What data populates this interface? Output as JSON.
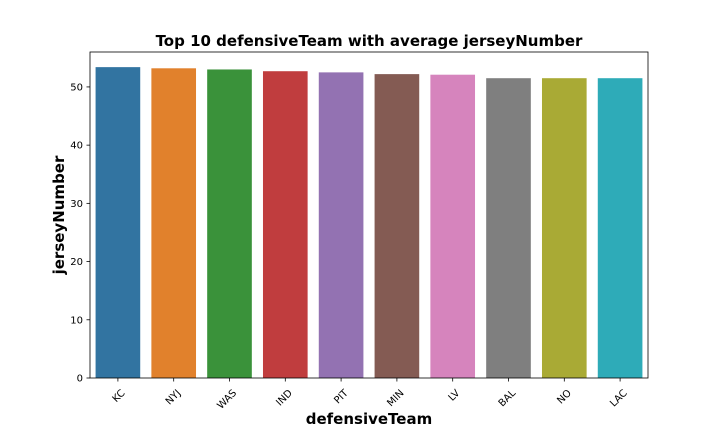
{
  "chart_data": {
    "type": "bar",
    "title": "Top 10 defensiveTeam with average jerseyNumber",
    "xlabel": "defensiveTeam",
    "ylabel": "jerseyNumber",
    "categories": [
      "KC",
      "NYJ",
      "WAS",
      "IND",
      "PIT",
      "MIN",
      "LV",
      "BAL",
      "NO",
      "LAC"
    ],
    "values": [
      53.4,
      53.2,
      53.0,
      52.7,
      52.5,
      52.2,
      52.1,
      51.5,
      51.5,
      51.5
    ],
    "colors": [
      "#3274a1",
      "#e1812c",
      "#3a923a",
      "#c03d3e",
      "#9372b2",
      "#845b53",
      "#d684bd",
      "#7f7f7f",
      "#a9aa35",
      "#2eabb8"
    ],
    "ylim": [
      0,
      56
    ],
    "yticks": [
      0,
      10,
      20,
      30,
      40,
      50
    ],
    "grid": false,
    "legend": "none"
  }
}
